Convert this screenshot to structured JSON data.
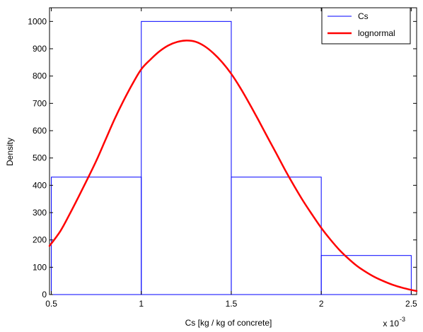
{
  "chart_data": {
    "type": "bar",
    "title": "",
    "xlabel": "Cs [kg / kg of concrete]",
    "ylabel": "Density",
    "x_multiplier_text": "x 10",
    "x_multiplier_exponent": "-3",
    "xlim": [
      0.49,
      2.53
    ],
    "ylim": [
      0,
      1050
    ],
    "x_ticks": [
      0.5,
      1,
      1.5,
      2,
      2.5
    ],
    "x_tick_labels": [
      "0.5",
      "1",
      "1.5",
      "2",
      "2.5"
    ],
    "y_ticks": [
      0,
      100,
      200,
      300,
      400,
      500,
      600,
      700,
      800,
      900,
      1000
    ],
    "y_tick_labels": [
      "0",
      "100",
      "200",
      "300",
      "400",
      "500",
      "600",
      "700",
      "800",
      "900",
      "1000"
    ],
    "grid": false,
    "legend_position": "top-right",
    "histogram": {
      "name": "Cs",
      "color": "#0000ff",
      "bins": [
        {
          "x0": 0.5,
          "x1": 1.0,
          "value": 430
        },
        {
          "x0": 1.0,
          "x1": 1.5,
          "value": 1000
        },
        {
          "x0": 1.5,
          "x1": 2.0,
          "value": 430
        },
        {
          "x0": 2.0,
          "x1": 2.5,
          "value": 143
        }
      ]
    },
    "curve": {
      "name": "lognormal",
      "color": "#ff0000",
      "x": [
        0.49,
        0.55,
        0.6,
        0.65,
        0.7,
        0.75,
        0.8,
        0.85,
        0.9,
        0.95,
        1.0,
        1.05,
        1.1,
        1.15,
        1.2,
        1.25,
        1.3,
        1.35,
        1.4,
        1.45,
        1.5,
        1.55,
        1.6,
        1.65,
        1.7,
        1.75,
        1.8,
        1.85,
        1.9,
        1.95,
        2.0,
        2.05,
        2.1,
        2.15,
        2.2,
        2.25,
        2.3,
        2.35,
        2.4,
        2.45,
        2.5,
        2.53
      ],
      "y": [
        178,
        232,
        292,
        356,
        422,
        490,
        565,
        640,
        708,
        770,
        825,
        860,
        890,
        912,
        925,
        930,
        926,
        910,
        884,
        850,
        808,
        757,
        700,
        640,
        578,
        517,
        455,
        397,
        342,
        292,
        244,
        202,
        164,
        132,
        104,
        82,
        63,
        48,
        35,
        25,
        17,
        13
      ]
    }
  }
}
